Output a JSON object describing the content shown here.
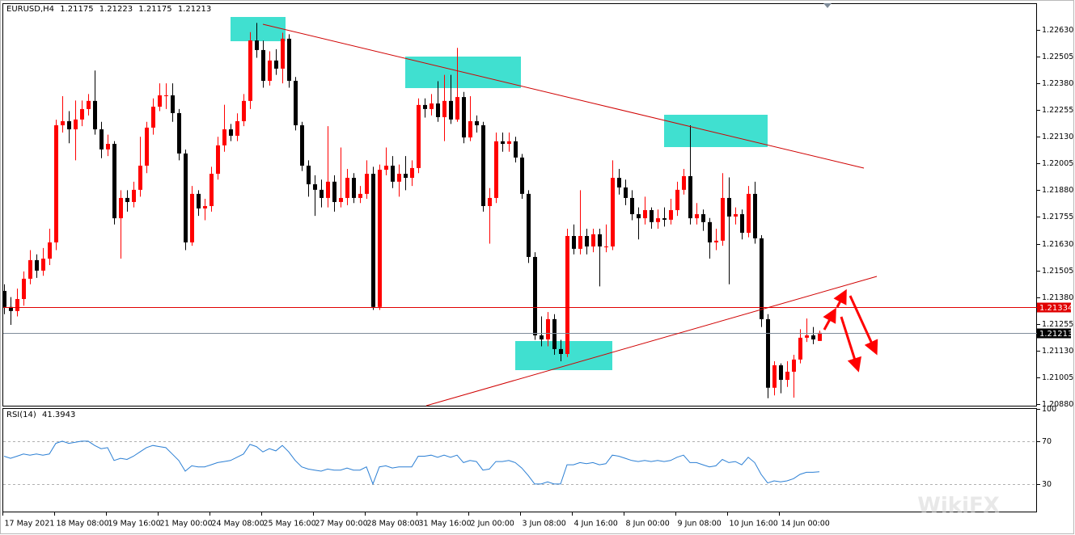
{
  "chart_data": [
    {
      "type": "candlestick",
      "title": "EURUSD,H4",
      "bull_color": "#ff0000",
      "bear_color": "#000000",
      "categories": [
        "17 May 2021",
        null,
        null,
        null,
        null,
        null,
        null,
        null,
        "18 May 08:00",
        null,
        null,
        null,
        null,
        null,
        null,
        null,
        "19 May 16:00",
        null,
        null,
        null,
        null,
        null,
        null,
        null,
        "21 May 00:00",
        null,
        null,
        null,
        null,
        null,
        null,
        null,
        "24 May 08:00",
        null,
        null,
        null,
        null,
        null,
        null,
        null,
        "25 May 16:00",
        null,
        null,
        null,
        null,
        null,
        null,
        null,
        "27 May 00:00",
        null,
        null,
        null,
        null,
        null,
        null,
        null,
        "28 May 08:00",
        null,
        null,
        null,
        null,
        null,
        null,
        null,
        "31 May 16:00",
        null,
        null,
        null,
        null,
        null,
        null,
        null,
        "2 Jun 00:00",
        null,
        null,
        null,
        null,
        null,
        null,
        null,
        "3 Jun 08:00",
        null,
        null,
        null,
        null,
        null,
        null,
        null,
        "4 Jun 16:00",
        null,
        null,
        null,
        null,
        null,
        null,
        null,
        "8 Jun 00:00",
        null,
        null,
        null,
        null,
        null,
        null,
        null,
        "9 Jun 08:00",
        null,
        null,
        null,
        null,
        null,
        null,
        null,
        "10 Jun 16:00",
        null,
        null,
        null,
        null,
        null,
        null,
        null,
        "14 Jun 00:00",
        null,
        null,
        null,
        null,
        null,
        null
      ],
      "open": [
        1.21409,
        1.21334,
        1.21315,
        1.21371,
        1.21466,
        1.21553,
        1.21504,
        1.2156,
        1.21636,
        1.22184,
        1.22203,
        1.22165,
        1.22211,
        1.2226,
        1.22298,
        1.22165,
        1.22071,
        1.22097,
        1.21749,
        1.21844,
        1.21825,
        1.21882,
        1.21995,
        1.22173,
        1.22271,
        1.22324,
        1.22324,
        1.22241,
        1.22052,
        1.21636,
        1.21863,
        1.21795,
        1.21806,
        1.21957,
        1.2209,
        1.22165,
        1.22135,
        1.22203,
        1.22298,
        1.22581,
        1.22536,
        1.22392,
        1.22487,
        1.22449,
        1.22589,
        1.22392,
        1.22184,
        1.21995,
        1.21908,
        1.21882,
        1.21844,
        1.2192,
        1.21825,
        1.21844,
        1.21938,
        1.21844,
        1.21863,
        1.21957,
        1.21334,
        1.21976,
        1.21995,
        1.2192,
        1.21957,
        1.21938,
        1.21984,
        1.22279,
        1.2226,
        1.22286,
        1.22222,
        1.22298,
        1.22211,
        1.22316,
        1.22127,
        1.22203,
        1.22184,
        1.21806,
        1.21844,
        1.22109,
        1.22097,
        1.22109,
        1.22033,
        1.21863,
        1.21568,
        1.21201,
        1.21182,
        1.21277,
        1.21137,
        1.21114,
        1.21666,
        1.21606,
        1.21666,
        1.21617,
        1.21674,
        1.21617,
        1.21617,
        1.21938,
        1.21893,
        1.21844,
        1.21768,
        1.21749,
        1.21787,
        1.21731,
        1.21749,
        1.21742,
        1.21787,
        1.21882,
        1.21946,
        1.21749,
        1.21768,
        1.21731,
        1.21636,
        1.21644,
        1.21844,
        1.21757,
        1.21768,
        1.21681,
        1.21863,
        1.21655,
        1.21277,
        1.20956,
        1.21061,
        1.20993,
        1.21031,
        1.21088,
        1.2119,
        1.21201,
        1.21175
      ],
      "high": [
        1.2144,
        1.2138,
        1.2142,
        1.215,
        1.216,
        1.2158,
        1.2161,
        1.217,
        1.2221,
        1.2232,
        1.2225,
        1.223,
        1.223,
        1.2233,
        1.2244,
        1.222,
        1.2214,
        1.2211,
        1.2188,
        1.2188,
        1.2192,
        1.2213,
        1.222,
        1.2231,
        1.2238,
        1.2238,
        1.2238,
        1.2226,
        1.2207,
        1.219,
        1.2188,
        1.2184,
        1.2199,
        1.2213,
        1.2228,
        1.2219,
        1.2224,
        1.2233,
        1.2262,
        1.22663,
        1.2258,
        1.2253,
        1.2254,
        1.22617,
        1.2261,
        1.2241,
        1.222,
        1.2202,
        1.2195,
        1.2193,
        1.2218,
        1.2195,
        1.2208,
        1.2198,
        1.2196,
        1.219,
        1.2202,
        1.2199,
        1.22,
        1.2208,
        1.2204,
        1.22,
        1.2204,
        1.2202,
        1.2231,
        1.2231,
        1.2233,
        1.2239,
        1.2242,
        1.2242,
        1.22546,
        1.2234,
        1.2232,
        1.2223,
        1.222,
        1.2189,
        1.2215,
        1.2215,
        1.2215,
        1.2213,
        1.2205,
        1.2188,
        1.2159,
        1.2129,
        1.2131,
        1.213,
        1.2118,
        1.217,
        1.2172,
        1.2188,
        1.217,
        1.217,
        1.217,
        1.2172,
        1.2202,
        1.2198,
        1.2193,
        1.2188,
        1.218,
        1.2185,
        1.218,
        1.2179,
        1.218,
        1.2184,
        1.2192,
        1.2198,
        1.22184,
        1.2182,
        1.2179,
        1.2175,
        1.217,
        1.2196,
        1.2194,
        1.218,
        1.2179,
        1.219,
        1.2192,
        1.2167,
        1.213,
        1.2108,
        1.2107,
        1.2108,
        1.2111,
        1.2123,
        1.2128,
        1.2124,
        1.21223
      ],
      "low": [
        1.213,
        1.2125,
        1.2129,
        1.2134,
        1.2144,
        1.2147,
        1.2148,
        1.2153,
        1.216,
        1.2215,
        1.221,
        1.2202,
        1.2218,
        1.2223,
        1.2214,
        1.2203,
        1.2204,
        1.2172,
        1.2156,
        1.2178,
        1.218,
        1.2185,
        1.2196,
        1.2214,
        1.2225,
        1.2226,
        1.222,
        1.2202,
        1.216,
        1.2162,
        1.2176,
        1.2174,
        1.2178,
        1.2193,
        1.2206,
        1.2211,
        1.2211,
        1.2218,
        1.2226,
        1.225,
        1.2236,
        1.2237,
        1.2242,
        1.2238,
        1.2236,
        1.2216,
        1.2197,
        1.2185,
        1.2176,
        1.218,
        1.218,
        1.2178,
        1.218,
        1.2181,
        1.2182,
        1.2182,
        1.2184,
        1.2132,
        1.2132,
        1.2195,
        1.2189,
        1.2185,
        1.2188,
        1.219,
        1.2196,
        1.2222,
        1.2223,
        1.222,
        1.2211,
        1.2219,
        1.222,
        1.221,
        1.2211,
        1.2215,
        1.2178,
        1.2163,
        1.2182,
        1.2206,
        1.2206,
        1.2201,
        1.2184,
        1.2154,
        1.2118,
        1.2115,
        1.2115,
        1.2111,
        1.2108,
        1.211,
        1.2158,
        1.2158,
        1.2158,
        1.2159,
        1.2143,
        1.2159,
        1.216,
        1.2186,
        1.2181,
        1.2174,
        1.2165,
        1.2172,
        1.217,
        1.217,
        1.2171,
        1.2172,
        1.2176,
        1.2186,
        1.2172,
        1.2172,
        1.2169,
        1.2156,
        1.216,
        1.2162,
        1.2144,
        1.2172,
        1.2165,
        1.2166,
        1.2163,
        1.2124,
        1.20907,
        1.2092,
        1.2093,
        1.2096,
        1.2091,
        1.2107,
        1.2117,
        1.2116,
        1.21175
      ],
      "close": [
        1.21334,
        1.21315,
        1.21371,
        1.21466,
        1.21553,
        1.21504,
        1.2156,
        1.21636,
        1.22184,
        1.22203,
        1.22165,
        1.22211,
        1.2226,
        1.22298,
        1.22165,
        1.22071,
        1.22097,
        1.21749,
        1.21844,
        1.21825,
        1.21882,
        1.21995,
        1.22173,
        1.22271,
        1.22324,
        1.22324,
        1.22241,
        1.22052,
        1.21636,
        1.21863,
        1.21795,
        1.21806,
        1.21957,
        1.2209,
        1.22165,
        1.22135,
        1.22203,
        1.22298,
        1.22581,
        1.22536,
        1.22392,
        1.22487,
        1.22449,
        1.22589,
        1.22392,
        1.22184,
        1.21995,
        1.21908,
        1.21882,
        1.21844,
        1.2192,
        1.21825,
        1.21844,
        1.21938,
        1.21844,
        1.21863,
        1.21957,
        1.21334,
        1.21976,
        1.21995,
        1.2192,
        1.21957,
        1.21938,
        1.21984,
        1.22279,
        1.2226,
        1.22286,
        1.22222,
        1.22298,
        1.22211,
        1.22316,
        1.22127,
        1.22203,
        1.22184,
        1.21806,
        1.21844,
        1.22109,
        1.22097,
        1.22109,
        1.22033,
        1.21863,
        1.21568,
        1.21201,
        1.21182,
        1.21277,
        1.21137,
        1.21114,
        1.21666,
        1.21606,
        1.21666,
        1.21617,
        1.21674,
        1.21617,
        1.21617,
        1.21938,
        1.21893,
        1.21844,
        1.21768,
        1.21749,
        1.21787,
        1.21731,
        1.21749,
        1.21742,
        1.21787,
        1.21882,
        1.21946,
        1.21749,
        1.21768,
        1.21731,
        1.21636,
        1.21644,
        1.21844,
        1.21757,
        1.21768,
        1.21681,
        1.21863,
        1.21655,
        1.21277,
        1.20956,
        1.21061,
        1.20993,
        1.21031,
        1.21088,
        1.2119,
        1.21201,
        1.21182,
        1.21213
      ],
      "ylim": [
        1.20872,
        1.22755
      ],
      "yticks": [
        {
          "value": 1.2263,
          "label": "1.22630"
        },
        1.22505,
        {
          "value": 1.2238,
          "label": "1.22380"
        },
        1.22255,
        {
          "value": 1.2213,
          "label": "1.22130"
        },
        1.22005,
        {
          "value": 1.2188,
          "label": "1.21880"
        },
        1.21755,
        {
          "value": 1.2163,
          "label": "1.21630"
        },
        1.21505,
        {
          "value": 1.2138,
          "label": "1.21380"
        },
        1.21255,
        {
          "value": 1.2113,
          "label": "1.21130"
        },
        1.21005,
        {
          "value": 1.2088,
          "label": "1.20880"
        }
      ],
      "hlines": [
        {
          "value": 1.21334,
          "color": "#e00000"
        },
        {
          "value": 1.21213,
          "color": "#7f8c9a"
        }
      ]
    },
    {
      "type": "line",
      "title": "RSI(14)",
      "color": "#2b7fd4",
      "values": [
        56,
        54,
        56,
        58,
        57,
        58,
        57,
        58,
        68,
        70,
        68,
        69,
        70,
        70,
        66,
        63,
        64,
        52,
        54,
        53,
        56,
        60,
        64,
        66,
        65,
        64,
        58,
        52,
        42,
        47,
        46,
        46,
        48,
        50,
        51,
        52,
        55,
        58,
        67,
        65,
        60,
        63,
        61,
        66,
        60,
        52,
        46,
        44,
        43,
        42,
        44,
        43,
        43,
        45,
        43,
        43,
        46,
        30,
        46,
        47,
        45,
        46,
        46,
        46,
        56,
        56,
        57,
        55,
        57,
        55,
        57,
        50,
        52,
        51,
        43,
        44,
        51,
        51,
        52,
        50,
        45,
        38,
        30,
        30,
        32,
        30,
        30,
        48,
        48,
        50,
        49,
        50,
        48,
        49,
        57,
        56,
        54,
        52,
        51,
        52,
        51,
        52,
        51,
        52,
        55,
        57,
        50,
        50,
        48,
        46,
        47,
        53,
        50,
        51,
        48,
        55,
        50,
        39,
        31,
        33,
        32,
        33,
        35,
        39,
        41,
        41,
        41.3943
      ],
      "ylim": [
        4.3,
        100.9
      ],
      "yticks": [
        30,
        70,
        100
      ]
    }
  ],
  "watermark": "WikiFX"
}
